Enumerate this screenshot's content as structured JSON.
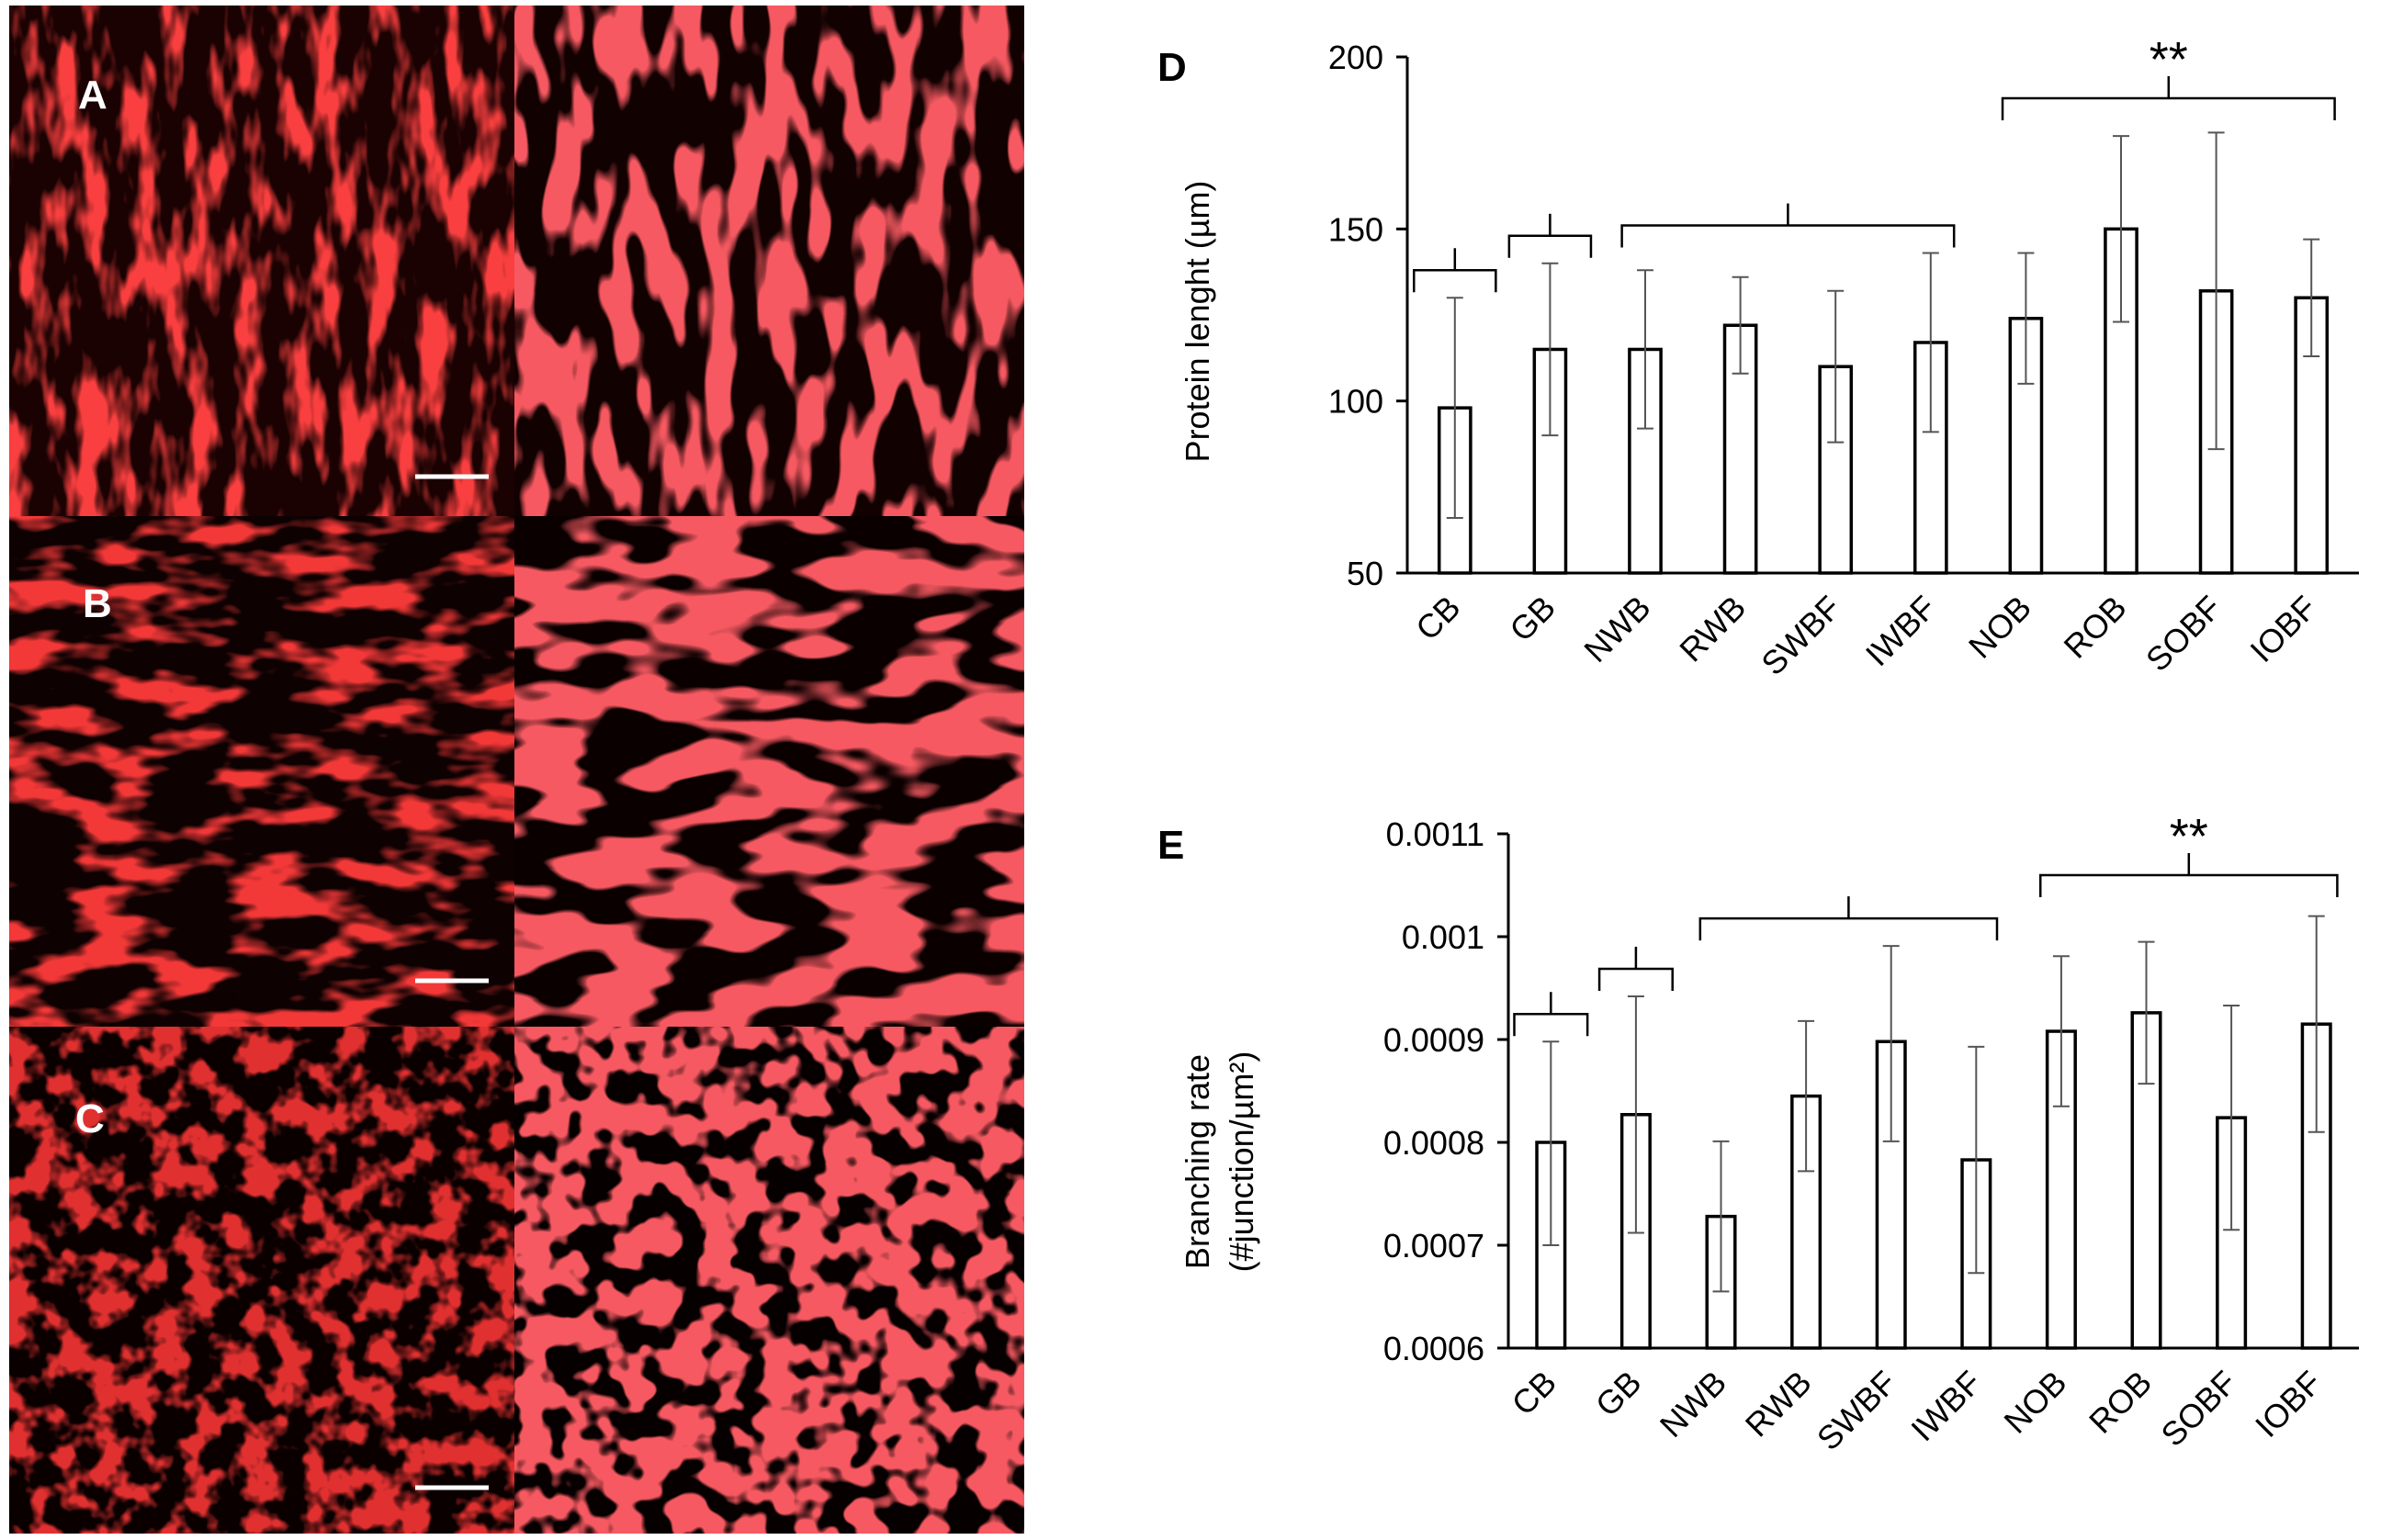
{
  "micrographs": [
    {
      "label": "A",
      "scale_bar": true
    },
    {
      "label": "B",
      "scale_bar": true
    },
    {
      "label": "C",
      "scale_bar": true
    }
  ],
  "colors": {
    "stain": "#e01818",
    "bar_fill": "#ffffff",
    "bar_stroke": "#000000",
    "background": "#000000"
  },
  "chart_data": [
    {
      "type": "bar",
      "panel_label": "D",
      "title": "",
      "xlabel": "",
      "ylabel": "Protein lenght (µm)",
      "ylim": [
        50,
        200
      ],
      "yticks": [
        "50",
        "100",
        "150",
        "200"
      ],
      "categories": [
        "CB",
        "GB",
        "NWB",
        "RWB",
        "SWBF",
        "IWBF",
        "NOB",
        "ROB",
        "SOBF",
        "IOBF"
      ],
      "values": [
        98,
        115,
        115,
        122,
        110,
        117,
        124,
        150,
        132,
        130
      ],
      "errors_upper": [
        32,
        25,
        23,
        14,
        22,
        26,
        19,
        27,
        46,
        17
      ],
      "errors_lower": [
        32,
        25,
        23,
        14,
        22,
        26,
        19,
        27,
        46,
        17
      ],
      "brackets": [
        {
          "from": 0,
          "to": 0
        },
        {
          "from": 1,
          "to": 1
        },
        {
          "from": 2,
          "to": 5
        },
        {
          "from": 6,
          "to": 9
        }
      ],
      "significance": "**"
    },
    {
      "type": "bar",
      "panel_label": "E",
      "title": "",
      "xlabel": "",
      "ylabel_line1": "Branching rate",
      "ylabel_line2": "(#junction/µm²)",
      "ylim": [
        0.0006,
        0.0011
      ],
      "yticks": [
        "0.0006",
        "0.0007",
        "0.0008",
        "0.0009",
        "0.001",
        "0.0011"
      ],
      "categories": [
        "CB",
        "GB",
        "NWB",
        "RWB",
        "SWBF",
        "IWBF",
        "NOB",
        "ROB",
        "SOBF",
        "IOBF"
      ],
      "values": [
        0.0008,
        0.000827,
        0.000728,
        0.000845,
        0.000898,
        0.000783,
        0.000908,
        0.000926,
        0.000824,
        0.000915
      ],
      "errors_upper": [
        9.8e-05,
        0.000115,
        7.3e-05,
        7.3e-05,
        9.3e-05,
        0.00011,
        7.3e-05,
        6.9e-05,
        0.000109,
        0.000105
      ],
      "errors_lower": [
        0.0001,
        0.000115,
        7.3e-05,
        7.3e-05,
        9.7e-05,
        0.00011,
        7.3e-05,
        6.9e-05,
        0.000109,
        0.000105
      ],
      "brackets": [
        {
          "from": 0,
          "to": 0
        },
        {
          "from": 1,
          "to": 1
        },
        {
          "from": 2,
          "to": 5
        },
        {
          "from": 6,
          "to": 9
        }
      ],
      "significance": "**"
    }
  ]
}
